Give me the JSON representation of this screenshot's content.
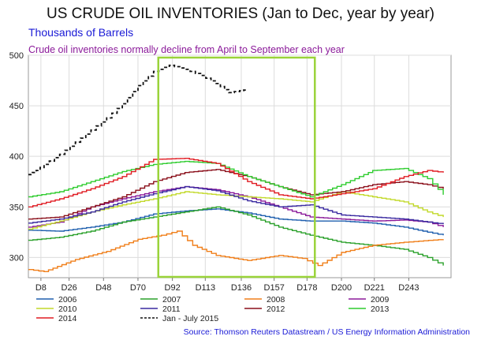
{
  "chart_data": {
    "type": "line",
    "title": "US CRUDE OIL INVENTORIES (Jan to Dec, year by year)",
    "subtitle": "Thousands of Barrels",
    "annotation": "Crude oil inventories normally decline from April to September each year",
    "source": "Source: Thomson Reuters Datastream / US Energy Information Administration",
    "x_tick_labels": [
      "D8",
      "D26",
      "D48",
      "D70",
      "D92",
      "D113",
      "D136",
      "D157",
      "D178",
      "D200",
      "D221",
      "D243"
    ],
    "x_ticks": [
      8,
      26,
      48,
      70,
      92,
      113,
      136,
      157,
      178,
      200,
      221,
      243
    ],
    "xlim": [
      0,
      270
    ],
    "ylim": [
      280,
      500
    ],
    "y_ticks": [
      300,
      350,
      400,
      450,
      500
    ],
    "grid": true,
    "highlight_box": {
      "x_from": 83,
      "x_to": 183,
      "color": "#9ad33a"
    },
    "legend_placement": "bottom",
    "series": [
      {
        "name": "2006",
        "color": "#1f5fae",
        "dash": false,
        "x": [
          0,
          20,
          40,
          60,
          80,
          100,
          120,
          140,
          160,
          180,
          200,
          220,
          240,
          255,
          265
        ],
        "y": [
          327,
          326,
          330,
          335,
          343,
          346,
          348,
          344,
          338,
          336,
          336,
          334,
          330,
          325,
          322
        ]
      },
      {
        "name": "2007",
        "color": "#2aa02a",
        "dash": false,
        "x": [
          0,
          20,
          40,
          60,
          80,
          100,
          120,
          140,
          160,
          180,
          200,
          220,
          240,
          255,
          265
        ],
        "y": [
          317,
          320,
          326,
          335,
          340,
          345,
          350,
          342,
          330,
          322,
          315,
          312,
          308,
          300,
          292
        ]
      },
      {
        "name": "2008",
        "color": "#f07f1a",
        "dash": false,
        "x": [
          0,
          10,
          30,
          50,
          70,
          85,
          95,
          105,
          120,
          140,
          160,
          175,
          185,
          200,
          220,
          240,
          265
        ],
        "y": [
          288,
          286,
          298,
          306,
          318,
          322,
          326,
          312,
          302,
          297,
          302,
          299,
          292,
          305,
          312,
          315,
          318
        ]
      },
      {
        "name": "2009",
        "color": "#8b1a9a",
        "dash": false,
        "x": [
          0,
          20,
          40,
          60,
          80,
          100,
          120,
          140,
          160,
          180,
          200,
          220,
          240,
          255,
          265
        ],
        "y": [
          330,
          335,
          350,
          358,
          365,
          370,
          367,
          360,
          350,
          340,
          338,
          336,
          337,
          335,
          330
        ]
      },
      {
        "name": "2010",
        "color": "#c2d92a",
        "dash": false,
        "x": [
          0,
          20,
          40,
          60,
          80,
          100,
          120,
          140,
          160,
          180,
          200,
          220,
          240,
          255,
          265
        ],
        "y": [
          328,
          336,
          345,
          352,
          358,
          365,
          362,
          360,
          358,
          355,
          365,
          360,
          355,
          345,
          340
        ]
      },
      {
        "name": "2011",
        "color": "#3a2aa0",
        "dash": false,
        "x": [
          0,
          20,
          40,
          60,
          80,
          100,
          120,
          140,
          160,
          180,
          200,
          220,
          240,
          255,
          265
        ],
        "y": [
          334,
          338,
          345,
          355,
          363,
          370,
          366,
          356,
          350,
          352,
          342,
          340,
          338,
          335,
          333
        ]
      },
      {
        "name": "2012",
        "color": "#8a0f1a",
        "dash": false,
        "x": [
          0,
          20,
          40,
          60,
          80,
          100,
          120,
          140,
          160,
          180,
          200,
          220,
          240,
          255,
          265
        ],
        "y": [
          338,
          340,
          350,
          360,
          375,
          384,
          387,
          380,
          370,
          362,
          365,
          372,
          375,
          372,
          368
        ]
      },
      {
        "name": "2013",
        "color": "#2ecc2e",
        "dash": false,
        "x": [
          0,
          20,
          40,
          60,
          80,
          100,
          120,
          140,
          160,
          180,
          200,
          220,
          240,
          255,
          265
        ],
        "y": [
          360,
          365,
          375,
          385,
          392,
          395,
          393,
          380,
          370,
          360,
          372,
          386,
          388,
          378,
          362
        ]
      },
      {
        "name": "2014",
        "color": "#e01b22",
        "dash": false,
        "x": [
          0,
          20,
          40,
          60,
          80,
          100,
          120,
          140,
          160,
          180,
          200,
          220,
          240,
          255,
          265
        ],
        "y": [
          350,
          358,
          368,
          380,
          397,
          398,
          393,
          375,
          362,
          358,
          363,
          368,
          380,
          386,
          384
        ]
      },
      {
        "name": "Jan - July 2015",
        "color": "#111111",
        "dash": true,
        "x": [
          0,
          5,
          10,
          20,
          30,
          40,
          50,
          60,
          70,
          80,
          90,
          100,
          110,
          120,
          128,
          135,
          140
        ],
        "y": [
          382,
          386,
          392,
          402,
          414,
          426,
          438,
          452,
          470,
          484,
          490,
          486,
          480,
          472,
          463,
          465,
          466
        ]
      }
    ]
  }
}
